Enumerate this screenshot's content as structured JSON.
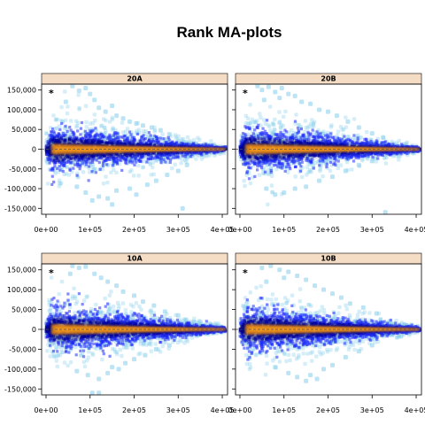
{
  "chart_data": {
    "type": "scatter",
    "title": "Rank MA-plots",
    "xlabel": "",
    "ylabel": "",
    "xlim": [
      -10000,
      412000
    ],
    "ylim": [
      -165000,
      165000
    ],
    "x_ticks": [
      0,
      100000,
      200000,
      300000,
      400000
    ],
    "x_tick_labels": [
      "0e+00",
      "1e+05",
      "2e+05",
      "3e+05",
      "4e+05"
    ],
    "y_ticks": [
      -150000,
      -100000,
      -50000,
      0,
      50000,
      100000,
      150000
    ],
    "y_tick_labels": [
      "-150,000",
      "-100,000",
      "-50,000",
      "0",
      "50,000",
      "100,000",
      "150,000"
    ],
    "reference_line": 0,
    "colors": {
      "strip": "#f5dcc4",
      "points_low": "#0000ff",
      "points_high": "#ff9900",
      "sparse": "#87ceeb",
      "ref_line": "#555555"
    },
    "panels": [
      {
        "name": "20A",
        "marker": "*",
        "outliers": [
          [
            60000,
            160000
          ],
          [
            75000,
            148000
          ],
          [
            90000,
            155000
          ],
          [
            100000,
            140000
          ],
          [
            110000,
            125000
          ],
          [
            120000,
            105000
          ],
          [
            135000,
            95000
          ],
          [
            150000,
            110000
          ],
          [
            160000,
            85000
          ],
          [
            175000,
            78000
          ],
          [
            190000,
            70000
          ],
          [
            205000,
            65000
          ],
          [
            220000,
            60000
          ],
          [
            240000,
            55000
          ],
          [
            260000,
            48000
          ],
          [
            280000,
            38000
          ],
          [
            70000,
            -95000
          ],
          [
            90000,
            -110000
          ],
          [
            120000,
            -120000
          ],
          [
            140000,
            -125000
          ],
          [
            150000,
            -140000
          ],
          [
            160000,
            -105000
          ],
          [
            190000,
            -100000
          ],
          [
            205000,
            -115000
          ],
          [
            230000,
            -90000
          ],
          [
            250000,
            -80000
          ],
          [
            275000,
            -65000
          ],
          [
            300000,
            -55000
          ],
          [
            310000,
            -150000
          ],
          [
            320000,
            -40000
          ],
          [
            105000,
            -130000
          ],
          [
            45000,
            120000
          ]
        ]
      },
      {
        "name": "20B",
        "marker": "*",
        "outliers": [
          [
            40000,
            160000
          ],
          [
            50000,
            150000
          ],
          [
            65000,
            158000
          ],
          [
            80000,
            145000
          ],
          [
            95000,
            155000
          ],
          [
            110000,
            140000
          ],
          [
            125000,
            135000
          ],
          [
            140000,
            120000
          ],
          [
            160000,
            115000
          ],
          [
            180000,
            100000
          ],
          [
            200000,
            95000
          ],
          [
            220000,
            85000
          ],
          [
            245000,
            70000
          ],
          [
            270000,
            55000
          ],
          [
            300000,
            40000
          ],
          [
            325000,
            30000
          ],
          [
            60000,
            -100000
          ],
          [
            80000,
            -115000
          ],
          [
            100000,
            -110000
          ],
          [
            125000,
            -100000
          ],
          [
            150000,
            -95000
          ],
          [
            180000,
            -80000
          ],
          [
            210000,
            -70000
          ],
          [
            240000,
            -55000
          ],
          [
            270000,
            -40000
          ],
          [
            300000,
            -30000
          ],
          [
            330000,
            -160000
          ],
          [
            55000,
            125000
          ],
          [
            90000,
            130000
          ]
        ]
      },
      {
        "name": "10A",
        "marker": "*",
        "outliers": [
          [
            60000,
            160000
          ],
          [
            75000,
            155000
          ],
          [
            90000,
            158000
          ],
          [
            110000,
            140000
          ],
          [
            125000,
            130000
          ],
          [
            140000,
            120000
          ],
          [
            160000,
            110000
          ],
          [
            175000,
            95000
          ],
          [
            200000,
            85000
          ],
          [
            220000,
            70000
          ],
          [
            245000,
            60000
          ],
          [
            270000,
            45000
          ],
          [
            300000,
            35000
          ],
          [
            70000,
            -105000
          ],
          [
            95000,
            -115000
          ],
          [
            120000,
            -125000
          ],
          [
            140000,
            -110000
          ],
          [
            150000,
            -95000
          ],
          [
            165000,
            -100000
          ],
          [
            180000,
            -85000
          ],
          [
            200000,
            -75000
          ],
          [
            225000,
            -65000
          ],
          [
            250000,
            -50000
          ],
          [
            280000,
            -40000
          ],
          [
            105000,
            -160000
          ],
          [
            120000,
            -160000
          ],
          [
            55000,
            140000
          ]
        ]
      },
      {
        "name": "10B",
        "marker": "*",
        "outliers": [
          [
            50000,
            155000
          ],
          [
            70000,
            160000
          ],
          [
            90000,
            150000
          ],
          [
            110000,
            145000
          ],
          [
            130000,
            135000
          ],
          [
            150000,
            125000
          ],
          [
            170000,
            110000
          ],
          [
            190000,
            100000
          ],
          [
            210000,
            90000
          ],
          [
            230000,
            80000
          ],
          [
            250000,
            65000
          ],
          [
            280000,
            55000
          ],
          [
            310000,
            40000
          ],
          [
            80000,
            -95000
          ],
          [
            110000,
            -110000
          ],
          [
            130000,
            -120000
          ],
          [
            150000,
            -130000
          ],
          [
            160000,
            -115000
          ],
          [
            175000,
            -125000
          ],
          [
            190000,
            -100000
          ],
          [
            210000,
            -90000
          ],
          [
            240000,
            -70000
          ],
          [
            270000,
            -55000
          ],
          [
            300000,
            -40000
          ],
          [
            60000,
            120000
          ],
          [
            100000,
            130000
          ]
        ]
      }
    ]
  }
}
